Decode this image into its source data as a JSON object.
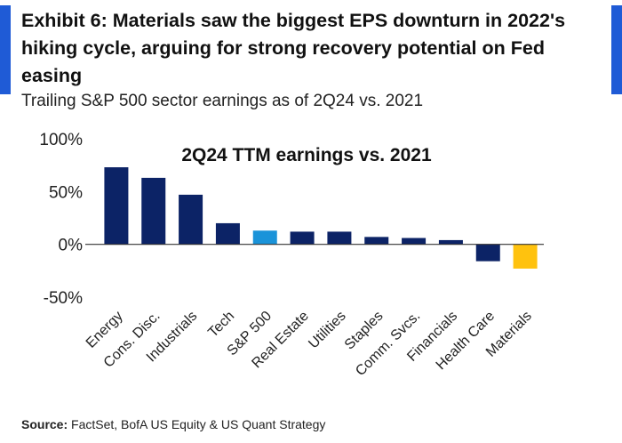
{
  "header": {
    "title": "Exhibit 6: Materials saw the biggest EPS downturn in 2022's hiking cycle, arguing for strong recovery potential on Fed easing",
    "subtitle": "Trailing S&P 500 sector earnings as of 2Q24 vs. 2021"
  },
  "colors": {
    "accent": "#1f5bd6",
    "bar_default": "#0c2366",
    "bar_sp500": "#1a93d9",
    "bar_materials": "#ffc20e"
  },
  "chart_data": {
    "type": "bar",
    "title": "2Q24 TTM earnings vs. 2021",
    "xlabel": "",
    "ylabel": "",
    "ylim": [
      -50,
      100
    ],
    "yticks": [
      "100%",
      "50%",
      "0%",
      "-50%"
    ],
    "ytick_values": [
      100,
      50,
      0,
      -50
    ],
    "grid": false,
    "categories": [
      "Energy",
      "Cons. Disc.",
      "Industrials",
      "Tech",
      "S&P 500",
      "Real Estate",
      "Utilities",
      "Staples",
      "Comm. Svcs.",
      "Financials",
      "Health Care",
      "Materials"
    ],
    "values": [
      73,
      63,
      47,
      20,
      13,
      12,
      12,
      7,
      6,
      4,
      -16,
      -23
    ],
    "bar_colors": [
      "#0c2366",
      "#0c2366",
      "#0c2366",
      "#0c2366",
      "#1a93d9",
      "#0c2366",
      "#0c2366",
      "#0c2366",
      "#0c2366",
      "#0c2366",
      "#0c2366",
      "#ffc20e"
    ]
  },
  "source": {
    "label": "Source:",
    "text": "FactSet, BofA US Equity & US Quant Strategy"
  }
}
